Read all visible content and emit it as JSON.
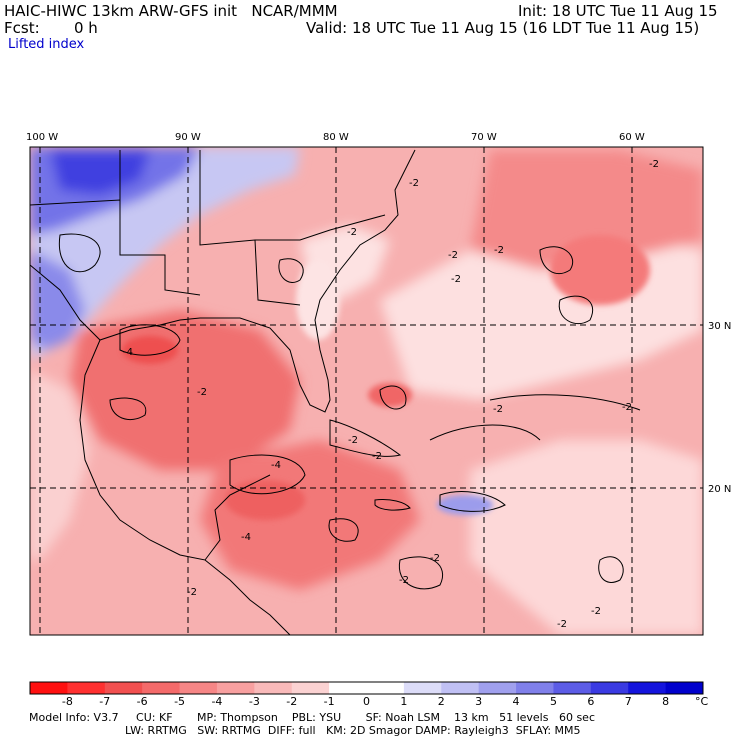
{
  "header": {
    "title": "HAIC-HIWC 13km ARW-GFS init   NCAR/MMM",
    "fcst_label": "Fcst:",
    "fcst_value": "0 h",
    "init": "Init: 18 UTC Tue 11 Aug 15",
    "valid": "Valid: 18 UTC Tue 11 Aug 15 (16 LDT Tue 11 Aug 15)",
    "field": "Lifted index"
  },
  "map": {
    "lon_labels": [
      "100 W",
      "90 W",
      "80 W",
      "70 W",
      "60 W"
    ],
    "lat_labels": [
      "30 N",
      "20 N"
    ],
    "contour_labels": [
      "-2",
      "-2",
      "-2",
      "-2",
      "-2",
      "-2",
      "-4",
      "-2",
      "-4",
      "-2",
      "-2",
      "-2",
      "-2",
      "-2",
      "-4",
      "-2",
      "-2",
      "-2",
      "-2"
    ],
    "background_color": "#f7b0b0"
  },
  "colorbar": {
    "labels": [
      "-8",
      "-7",
      "-6",
      "-5",
      "-4",
      "-3",
      "-2",
      "-1",
      "0",
      "1",
      "2",
      "3",
      "4",
      "5",
      "6",
      "7",
      "8"
    ],
    "unit": "°C",
    "colors": [
      "#ff1010",
      "#ff3030",
      "#f25050",
      "#f46a6a",
      "#f68686",
      "#f8a0a0",
      "#f9baba",
      "#fbd2d2",
      "#ffffff",
      "#ffffff",
      "#dcdcf8",
      "#c0c0f4",
      "#a0a0ee",
      "#8080ea",
      "#5c5ce6",
      "#3a3ae2",
      "#1414dd",
      "#0000cc"
    ]
  },
  "footer": {
    "line1": "Model Info: V3.7     CU: KF       MP: Thompson    PBL: YSU       SF: Noah LSM    13 km   51 levels   60 sec",
    "line2": "LW: RRTMG   SW: RRTMG  DIFF: full   KM: 2D Smagor DAMP: Rayleigh3  SFLAY: MM5"
  }
}
